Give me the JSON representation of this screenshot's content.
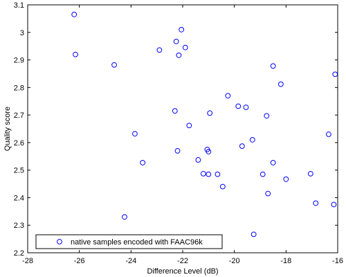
{
  "chart_data": {
    "type": "scatter",
    "xlabel": "Difference Level (dB)",
    "ylabel": "Quality score",
    "xlim": [
      -28,
      -16
    ],
    "ylim": [
      2.2,
      3.1
    ],
    "xticks": [
      -28,
      -26,
      -24,
      -22,
      -20,
      -18,
      -16
    ],
    "yticks": [
      2.2,
      2.3,
      2.4,
      2.5,
      2.6,
      2.7,
      2.8,
      2.9,
      3.0,
      3.1
    ],
    "xtick_labels": [
      "-28",
      "-26",
      "-24",
      "-22",
      "-20",
      "-18",
      "-16"
    ],
    "ytick_labels": [
      "2.2",
      "2.3",
      "2.4",
      "2.5",
      "2.6",
      "2.7",
      "2.8",
      "2.9",
      "3",
      "3.1"
    ],
    "grid": false,
    "legend_position": "bottom-left",
    "marker": "circle",
    "series": [
      {
        "name": "native samples encoded with FAAC96k",
        "color": "#0000ff",
        "points": [
          [
            -26.2,
            3.065
          ],
          [
            -26.15,
            2.92
          ],
          [
            -24.65,
            2.882
          ],
          [
            -24.25,
            2.33
          ],
          [
            -23.85,
            2.632
          ],
          [
            -23.55,
            2.527
          ],
          [
            -22.9,
            2.936
          ],
          [
            -22.3,
            2.715
          ],
          [
            -22.25,
            2.967
          ],
          [
            -22.2,
            2.57
          ],
          [
            -22.15,
            2.917
          ],
          [
            -22.05,
            3.01
          ],
          [
            -21.9,
            2.945
          ],
          [
            -21.75,
            2.662
          ],
          [
            -21.4,
            2.537
          ],
          [
            -21.2,
            2.487
          ],
          [
            -21.05,
            2.575
          ],
          [
            -21.0,
            2.567
          ],
          [
            -21.0,
            2.485
          ],
          [
            -20.95,
            2.707
          ],
          [
            -20.65,
            2.485
          ],
          [
            -20.45,
            2.44
          ],
          [
            -20.25,
            2.77
          ],
          [
            -19.85,
            2.732
          ],
          [
            -19.7,
            2.587
          ],
          [
            -19.55,
            2.728
          ],
          [
            -19.3,
            2.61
          ],
          [
            -19.25,
            2.267
          ],
          [
            -18.9,
            2.485
          ],
          [
            -18.75,
            2.697
          ],
          [
            -18.7,
            2.415
          ],
          [
            -18.5,
            2.527
          ],
          [
            -18.5,
            2.878
          ],
          [
            -18.2,
            2.812
          ],
          [
            -18.0,
            2.467
          ],
          [
            -17.05,
            2.487
          ],
          [
            -16.85,
            2.38
          ],
          [
            -16.35,
            2.63
          ],
          [
            -16.15,
            2.375
          ],
          [
            -16.1,
            2.848
          ]
        ]
      }
    ]
  },
  "colors": {
    "marker": "#0000ff",
    "axes": "#000000",
    "background": "#ffffff"
  }
}
